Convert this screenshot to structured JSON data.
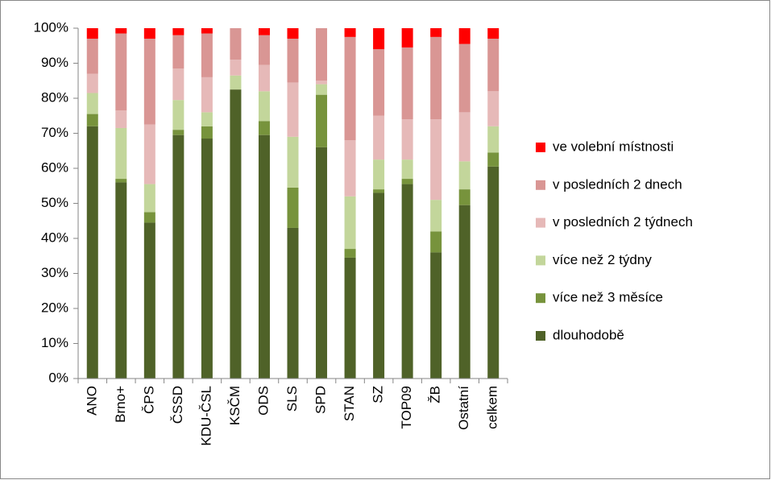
{
  "chart_data": {
    "type": "stacked_bar",
    "categories": [
      "ANO",
      "Brno+",
      "ČPS",
      "ČSSD",
      "KDU-ČSL",
      "KSČM",
      "ODS",
      "SLS",
      "SPD",
      "STAN",
      "SZ",
      "TOP09",
      "ŽB",
      "Ostatní",
      "celkem"
    ],
    "series": [
      {
        "name": "dlouhodobě",
        "color": "#4f6228",
        "values": [
          72,
          56,
          44.5,
          69.5,
          68.5,
          82.5,
          69.5,
          43,
          66,
          34.5,
          53,
          55.5,
          36,
          49.5,
          60.5
        ]
      },
      {
        "name": "více než 3 měsíce",
        "color": "#77933c",
        "values": [
          3.5,
          1,
          3,
          1.5,
          3.5,
          0,
          4,
          11.5,
          15,
          2.5,
          1,
          1.5,
          6,
          4.5,
          4
        ]
      },
      {
        "name": "více než 2 týdny",
        "color": "#c3d69b",
        "values": [
          6,
          14.5,
          8,
          8.5,
          4,
          4,
          8.5,
          14.5,
          3,
          15,
          8.5,
          5.5,
          9,
          8,
          7.5
        ]
      },
      {
        "name": "v posledních 2 týdnech",
        "color": "#e6b9b8",
        "values": [
          5.5,
          5,
          17,
          9,
          10,
          4.5,
          7.5,
          15.5,
          1,
          16,
          12.5,
          11.5,
          23,
          14,
          10
        ]
      },
      {
        "name": "v posledních 2 dnech",
        "color": "#d99694",
        "values": [
          10,
          22,
          24.5,
          9.5,
          12.5,
          9,
          8.5,
          12.5,
          15,
          29.5,
          19,
          20.5,
          23.5,
          19.5,
          15
        ]
      },
      {
        "name": "ve volební místnosti",
        "color": "#ff0000",
        "values": [
          3,
          1.5,
          3,
          2,
          1.5,
          0,
          2,
          3,
          0,
          2.5,
          6,
          5.5,
          2.5,
          4.5,
          3
        ]
      }
    ],
    "ylim": [
      0,
      100
    ],
    "yticks": [
      {
        "value": 0,
        "label": "0%"
      },
      {
        "value": 10,
        "label": "10%"
      },
      {
        "value": 20,
        "label": "20%"
      },
      {
        "value": 30,
        "label": "30%"
      },
      {
        "value": 40,
        "label": "40%"
      },
      {
        "value": 50,
        "label": "50%"
      },
      {
        "value": 60,
        "label": "60%"
      },
      {
        "value": 70,
        "label": "70%"
      },
      {
        "value": 80,
        "label": "80%"
      },
      {
        "value": 90,
        "label": "90%"
      },
      {
        "value": 100,
        "label": "100%"
      }
    ],
    "grid": false,
    "legend": "right"
  }
}
